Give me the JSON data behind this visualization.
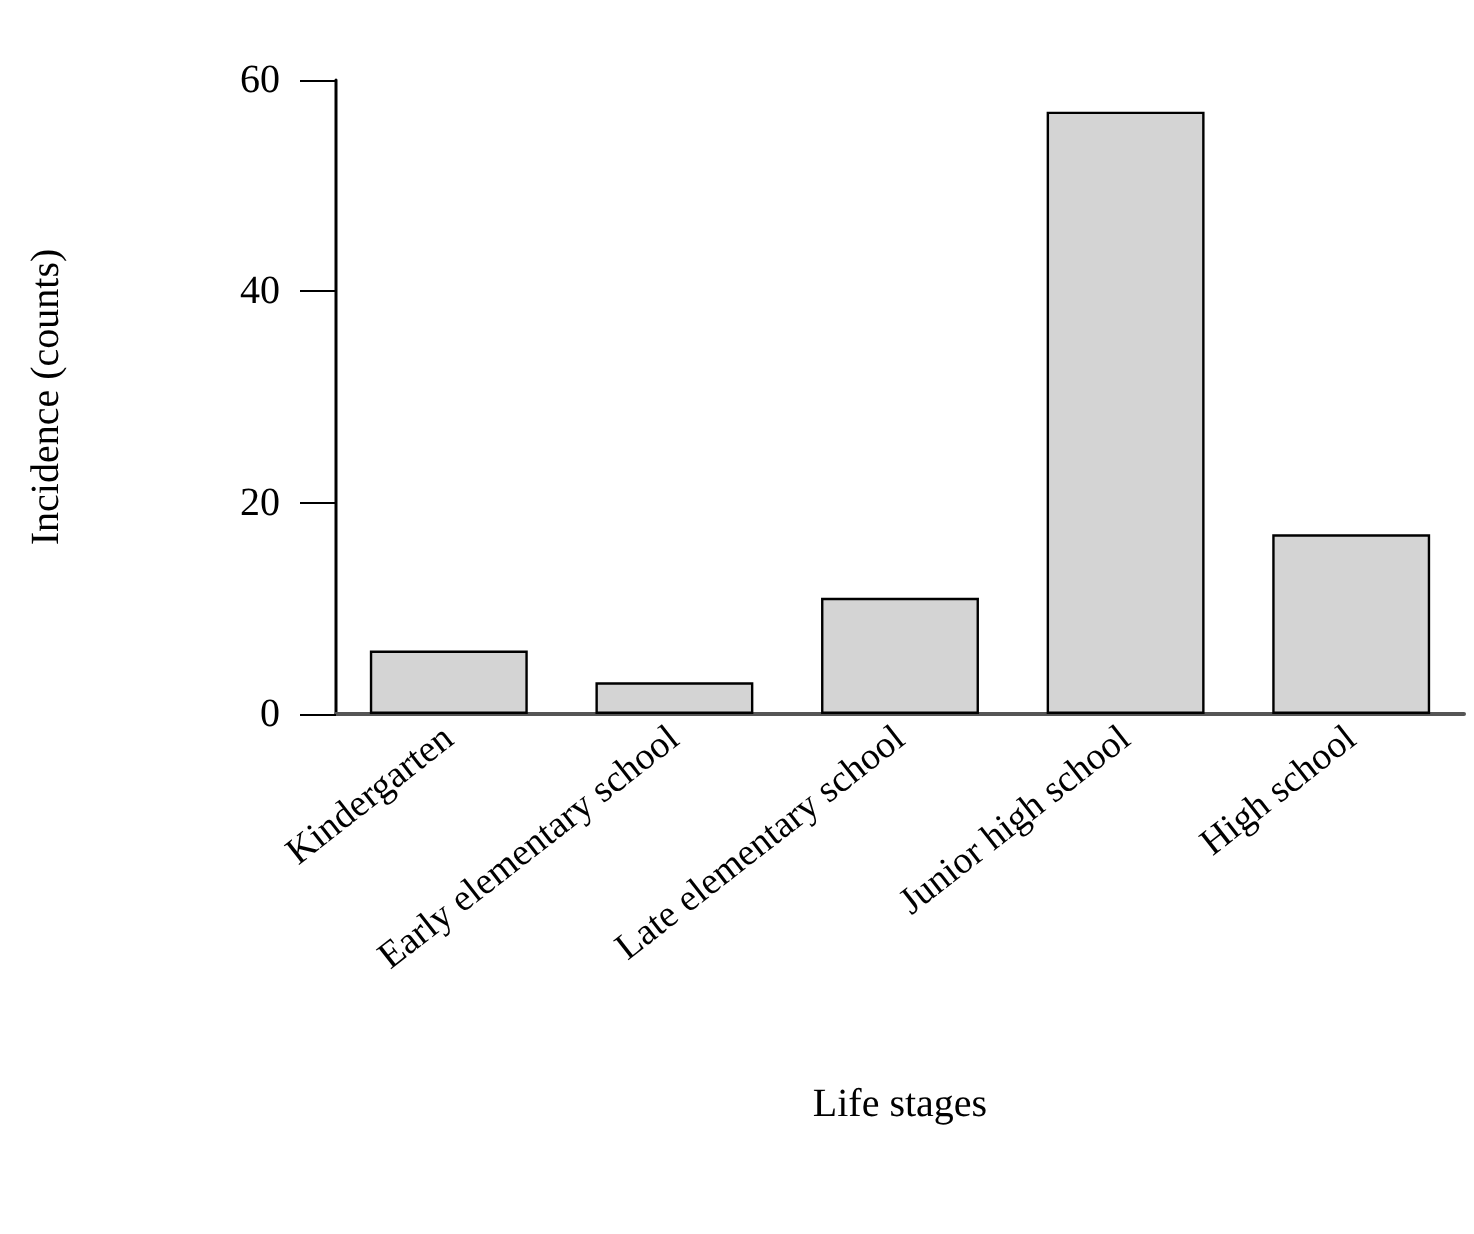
{
  "chart_data": {
    "type": "bar",
    "xlabel": "Life stages",
    "ylabel": "Incidence (counts)",
    "categories": [
      "Kindergarten",
      "Early elementary school",
      "Late elementary school",
      "Junior high school",
      "High school"
    ],
    "values": [
      6,
      3,
      11,
      57,
      17
    ],
    "color": "#d4d4d4",
    "ylim": [
      0,
      60
    ],
    "yticks": [
      0,
      20,
      40,
      60
    ],
    "grid": false
  }
}
